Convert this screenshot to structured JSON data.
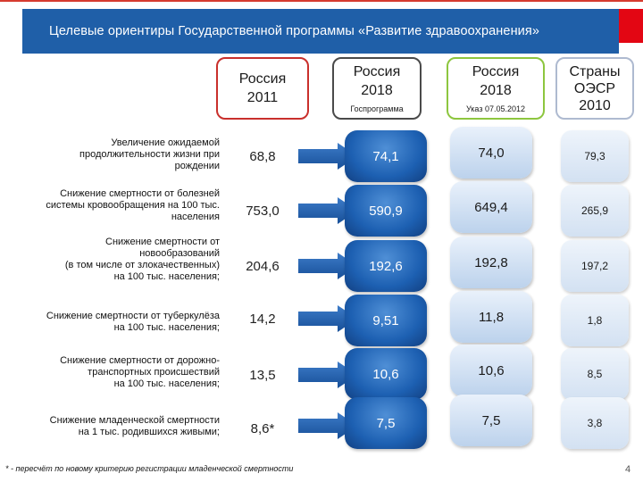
{
  "header": {
    "title": "Целевые ориентиры Государственной программы «Развитие здравоохранения»"
  },
  "columns": [
    {
      "title": "Россия\n2011",
      "note": ""
    },
    {
      "title": "Россия\n2018",
      "note": "Госпрограмма"
    },
    {
      "title": "Россия\n2018",
      "note": "Указ 07.05.2012"
    },
    {
      "title": "Страны\nОЭСР\n2010",
      "note": ""
    }
  ],
  "rows": [
    {
      "label": "Увеличение ожидаемой\nпродолжительности жизни при\nрождении",
      "values": [
        "68,8",
        "74,1",
        "74,0",
        "79,3"
      ]
    },
    {
      "label": "Снижение смертности от болезней\nсистемы кровообращения на 100 тыс.\nнаселения",
      "values": [
        "753,0",
        "590,9",
        "649,4",
        "265,9"
      ]
    },
    {
      "label": "Снижение смертности от\nновообразований\n(в том числе от злокачественных)\nна 100 тыс. населения;",
      "values": [
        "204,6",
        "192,6",
        "192,8",
        "197,2"
      ]
    },
    {
      "label": "Снижение смертности от туберкулёза\nна 100 тыс. населения;",
      "values": [
        "14,2",
        "9,51",
        "11,8",
        "1,8"
      ]
    },
    {
      "label": "Снижение смертности от дорожно-\nтранспортных происшествий\nна 100 тыс. населения;",
      "values": [
        "13,5",
        "10,6",
        "10,6",
        "8,5"
      ]
    },
    {
      "label": "Снижение младенческой смертности\nна 1 тыс. родившихся живыми;",
      "values": [
        "8,6*",
        "7,5",
        "7,5",
        "3,8"
      ]
    }
  ],
  "footnote": "* - пересчёт по новому критерию регистрации младенческой смертности",
  "page_number": "4",
  "colors": {
    "header_bg": "#1f5fa8",
    "accent_red": "#e30613",
    "dark_blue_cell": "#1d60b2",
    "light_blue_cell": "#bcd2ec"
  }
}
